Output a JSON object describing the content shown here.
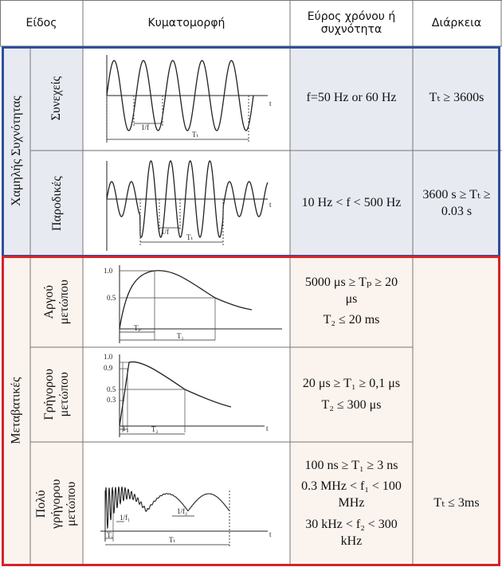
{
  "header": {
    "col_type": "Είδος",
    "col_waveform": "Κυματομορφή",
    "col_range": "Εύρος χρόνου ή συχνότητα",
    "col_duration": "Διάρκεια"
  },
  "groups": {
    "low_freq": "Χαμηλής Συχνότητας",
    "transient": "Μεταβατικές"
  },
  "rows": {
    "continuous": {
      "label": "Συνεχείς",
      "range": "f=50 Hz or 60 Hz",
      "duration": "Tₜ ≥ 3600s",
      "wave_labels": {
        "t": "t",
        "period": "1/f",
        "tt": "Tₜ"
      }
    },
    "temporary": {
      "label": "Παροδικές",
      "range": "10 Hz < f < 500 Hz",
      "duration": "3600 s ≥ Tₜ ≥ 0.03 s",
      "wave_labels": {
        "t": "t",
        "period": "1/f",
        "tt": "Tₜ"
      }
    },
    "slow_front": {
      "label": "Αργού μετώπου",
      "range_1": "5000 μs ≥ Tₚ ≥ 20 μs",
      "range_2": "T₂ ≤ 20 ms",
      "duration": "",
      "wave_labels": {
        "y1": "1.0",
        "y05": "0.5",
        "tp": "Tₚ",
        "t2": "T₂"
      }
    },
    "fast_front": {
      "label": "Γρήγορου μετώπου",
      "range_1": "20 μs ≥ T₁ ≥ 0,1 μs",
      "range_2": "T₂ ≤ 300 μs",
      "duration": "",
      "wave_labels": {
        "y1": "1.0",
        "y09": "0.9",
        "y05": "0.5",
        "y03": "0.3",
        "t1": "T₁",
        "t2": "T₂",
        "t": "t"
      }
    },
    "very_fast_front": {
      "label": "Πολύ γρήγορου μετώπου",
      "range_1": "100 ns ≥ T₁ ≥ 3 ns",
      "range_2": "0.3 MHz < f₁ < 100 MHz",
      "range_3": "30 kHz < f₂ < 300 kHz",
      "duration": "Tₜ ≤ 3ms",
      "wave_labels": {
        "f1": "1/f₁",
        "f2": "1/f₂",
        "ti": "Tᵢ",
        "tt": "Tₜ",
        "t": "t"
      }
    }
  },
  "colors": {
    "group_low": "#2f4f9a",
    "group_transient": "#d4232b",
    "bg_low": "#e8eaf2",
    "bg_transient": "#fbf3ee"
  }
}
